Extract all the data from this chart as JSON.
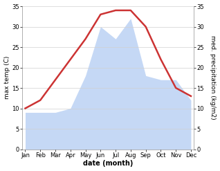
{
  "months": [
    "Jan",
    "Feb",
    "Mar",
    "Apr",
    "May",
    "Jun",
    "Jul",
    "Aug",
    "Sep",
    "Oct",
    "Nov",
    "Dec"
  ],
  "temp": [
    10,
    12,
    17,
    22,
    27,
    33,
    34,
    34,
    30,
    22,
    15,
    13
  ],
  "precip": [
    9,
    9,
    9,
    10,
    18,
    30,
    27,
    32,
    18,
    17,
    17,
    12
  ],
  "temp_color": "#cc3333",
  "precip_color": "#c5d8f5",
  "ylim": [
    0,
    35
  ],
  "xlabel": "date (month)",
  "ylabel_left": "max temp (C)",
  "ylabel_right": "med. precipitation (kg/m2)",
  "temp_linewidth": 1.8,
  "grid_color": "#d0d0d0",
  "tick_label_size": 6,
  "axis_label_size": 6.5,
  "xlabel_size": 7
}
